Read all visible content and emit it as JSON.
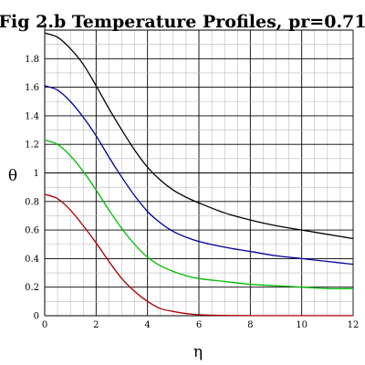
{
  "chart_data": {
    "type": "line",
    "title": "Fig 2.b  Temperature Profiles, pr=0.71",
    "xlabel": "η",
    "ylabel": "θ",
    "xlim": [
      0,
      12
    ],
    "ylim": [
      0,
      2
    ],
    "x_ticks": [
      0,
      2,
      4,
      6,
      8,
      10,
      12
    ],
    "y_ticks": [
      0,
      0.2,
      0.4,
      0.6,
      0.8,
      1,
      1.2,
      1.4,
      1.6,
      1.8
    ],
    "x_tick_labels": [
      "0",
      "2",
      "4",
      "6",
      "8",
      "10",
      "12"
    ],
    "y_tick_labels": [
      "0",
      "0.2",
      "0.4",
      "0.6",
      "0.8",
      "1",
      "1.2",
      "1.4",
      "1.6",
      "1.8"
    ],
    "grid": true,
    "legend": "none",
    "series": [
      {
        "color": "#000000",
        "x": [
          0,
          0.5,
          1,
          1.5,
          2,
          2.5,
          3,
          3.5,
          4,
          4.5,
          5,
          5.5,
          6,
          7,
          8,
          9,
          10,
          11,
          12
        ],
        "y": [
          1.98,
          1.95,
          1.87,
          1.76,
          1.61,
          1.45,
          1.3,
          1.16,
          1.04,
          0.95,
          0.88,
          0.83,
          0.79,
          0.72,
          0.67,
          0.63,
          0.6,
          0.57,
          0.54
        ]
      },
      {
        "color": "#000099",
        "x": [
          0,
          0.5,
          1,
          1.5,
          2,
          2.5,
          3,
          3.5,
          4,
          4.5,
          5,
          5.5,
          6,
          7,
          8,
          9,
          10,
          11,
          12
        ],
        "y": [
          1.61,
          1.58,
          1.5,
          1.39,
          1.26,
          1.11,
          0.97,
          0.84,
          0.73,
          0.65,
          0.59,
          0.55,
          0.52,
          0.48,
          0.45,
          0.42,
          0.4,
          0.38,
          0.36
        ]
      },
      {
        "color": "#00bb00",
        "x": [
          0,
          0.5,
          1,
          1.5,
          2,
          2.5,
          3,
          3.5,
          4,
          4.5,
          5,
          5.5,
          6,
          7,
          8,
          9,
          10,
          11,
          12
        ],
        "y": [
          1.23,
          1.2,
          1.12,
          1.01,
          0.88,
          0.74,
          0.61,
          0.5,
          0.41,
          0.35,
          0.31,
          0.28,
          0.26,
          0.24,
          0.22,
          0.21,
          0.2,
          0.19,
          0.19
        ]
      },
      {
        "color": "#aa0000",
        "x": [
          0,
          0.5,
          1,
          1.5,
          2,
          2.5,
          3,
          3.5,
          4,
          4.5,
          5,
          5.5,
          6,
          7,
          8,
          9,
          10,
          11,
          12
        ],
        "y": [
          0.85,
          0.82,
          0.74,
          0.63,
          0.51,
          0.38,
          0.26,
          0.17,
          0.1,
          0.05,
          0.03,
          0.015,
          0.007,
          0.002,
          0.001,
          0.001,
          0.001,
          0.001,
          0.001
        ]
      }
    ]
  }
}
